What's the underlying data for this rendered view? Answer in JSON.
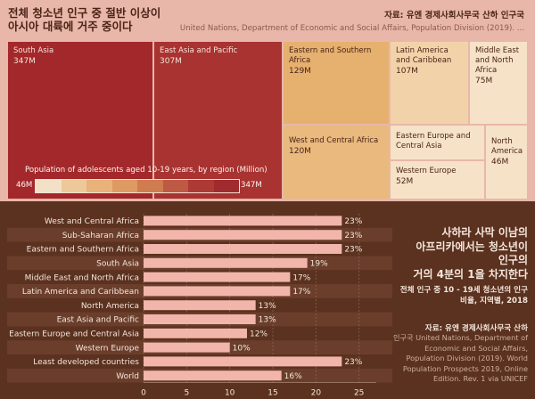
{
  "top": {
    "title": "전체 청소년 인구 중 절반 이상이\n아시아 대륙에 거주 중이다",
    "source_label": "자료: 유엔 경제사회사무국 산하 인구국",
    "source": "United Nations, Department of Economic and Social Affairs, Population Division (2019). ...",
    "legend": {
      "title": "Population of adolescents aged 10-19 years, by region (Million)",
      "min": "46M",
      "max": "347M",
      "colors": [
        "#f3e1c7",
        "#edc999",
        "#e9b27a",
        "#dd9a62",
        "#cf7c50",
        "#be5a43",
        "#ad3a35",
        "#a02a2e"
      ]
    }
  },
  "colors": {
    "top_bg": "#e8b7a9",
    "bottom_bg": "#5b311f",
    "bar": "#f2b5ab",
    "bar_text": "#f4e6dc"
  },
  "chart_data": [
    {
      "type": "treemap",
      "unit": "Million",
      "items": [
        {
          "name": "South Asia",
          "label": "347M",
          "value": 347,
          "color": "#a3282b",
          "text": "#f7e1d8"
        },
        {
          "name": "East Asia and Pacific",
          "label": "307M",
          "value": 307,
          "color": "#a83331",
          "text": "#f7e1d8"
        },
        {
          "name": "Eastern and Southern Africa",
          "label": "129M",
          "value": 129,
          "color": "#e6b06f",
          "text": "#4a2417"
        },
        {
          "name": "West and Central Africa",
          "label": "120M",
          "value": 120,
          "color": "#e9b97e",
          "text": "#4a2417"
        },
        {
          "name": "Latin America and Caribbean",
          "label": "107M",
          "value": 107,
          "color": "#f2d3a9",
          "text": "#4a2417"
        },
        {
          "name": "Middle East and North Africa",
          "label": "75M",
          "value": 75,
          "color": "#f6e2c7",
          "text": "#4a2417"
        },
        {
          "name": "Eastern Europe and Central Asia",
          "label": "",
          "value": null,
          "color": "#f6e2c7",
          "text": "#4a2417"
        },
        {
          "name": "Western Europe",
          "label": "52M",
          "value": 52,
          "color": "#f6e2c7",
          "text": "#4a2417"
        },
        {
          "name": "North America",
          "label": "46M",
          "value": 46,
          "color": "#f6e2c7",
          "text": "#4a2417"
        }
      ]
    },
    {
      "type": "bar",
      "orientation": "horizontal",
      "categories": [
        "West and Central Africa",
        "Sub-Saharan Africa",
        "Eastern and Southern Africa",
        "South Asia",
        "Middle East and North Africa",
        "Latin America and Caribbean",
        "North America",
        "East Asia and Pacific",
        "Eastern Europe and Central Asia",
        "Western Europe",
        "Least developed countries",
        "World"
      ],
      "values": [
        23,
        23,
        23,
        19,
        17,
        17,
        13,
        13,
        12,
        10,
        23,
        16
      ],
      "value_labels": [
        "23%",
        "23%",
        "23%",
        "19%",
        "17%",
        "17%",
        "13%",
        "13%",
        "12%",
        "10%",
        "23%",
        "16%"
      ],
      "xlim": [
        0,
        27
      ],
      "xticks": [
        "0",
        "5",
        "10",
        "15",
        "20",
        "25"
      ],
      "grid": true,
      "title": "사하라 사막 이남의\n아프리카에서는 청소년이\n인구의\n거의 4분의 1을 차지한다",
      "subtitle": "전체 인구 중 10 - 19세 청소년의 인구\n비율, 지역별, 2018",
      "source_label": "자료: 유엔 경제사회사무국 산하",
      "source": "인구국 United Nations, Department of Economic and Social Affairs, Population Division (2019). World Population Prospects 2019, Online Edition. Rev. 1 via UNICEF"
    }
  ]
}
